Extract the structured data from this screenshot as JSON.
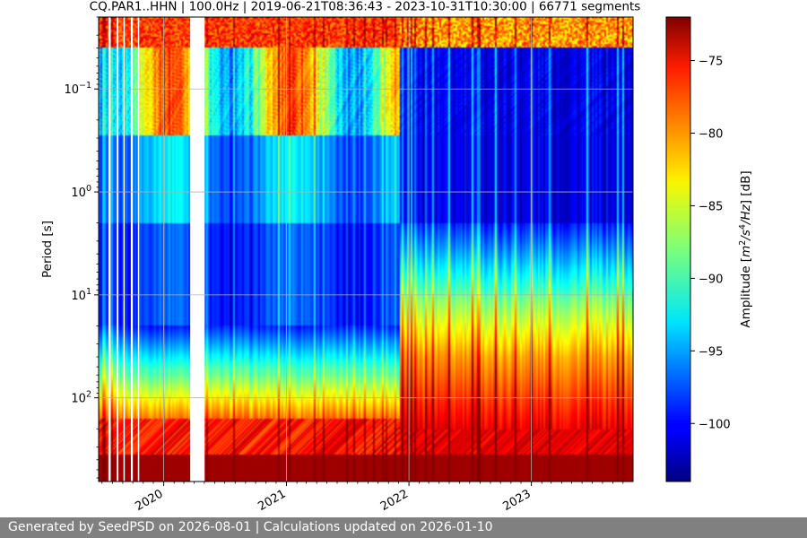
{
  "chart_data": {
    "type": "heatmap",
    "title": "CQ.PAR1..HHN | 100.0Hz | 2019-06-21T08:36:43 - 2023-10-31T10:30:00 | 66771 segments",
    "ylabel": "Period [s]",
    "xlabel": "",
    "x_tick_labels": [
      "2020",
      "2021",
      "2022",
      "2023"
    ],
    "x_tick_years": [
      2020,
      2021,
      2022,
      2023
    ],
    "xlim": [
      "2019-06-21",
      "2023-10-31"
    ],
    "y_scale": "log",
    "y_inverted": true,
    "ylim": [
      0.02,
      650
    ],
    "y_ticks": [
      {
        "value": 0.1,
        "base": "10",
        "exp": "−1"
      },
      {
        "value": 1,
        "base": "10",
        "exp": "0"
      },
      {
        "value": 10,
        "base": "10",
        "exp": "1"
      },
      {
        "value": 100,
        "base": "10",
        "exp": "2"
      }
    ],
    "grid": true,
    "colorbar": {
      "label_prefix": "Amplitude [",
      "label_unit_m": "m",
      "label_exp_2": "2",
      "label_slash_s": "/s",
      "label_exp_4": "4",
      "label_hz": "/Hz",
      "label_suffix": "] [dB]",
      "min": -104,
      "max": -72,
      "ticks": [
        -75,
        -80,
        -85,
        -90,
        -95,
        -100
      ],
      "colormap": "jet"
    },
    "gaps": [
      [
        "2019-07-20",
        "2019-07-27"
      ],
      [
        "2019-08-14",
        "2019-08-19"
      ],
      [
        "2019-09-03",
        "2019-09-07"
      ],
      [
        "2019-09-25",
        "2019-10-01"
      ],
      [
        "2019-10-16",
        "2019-10-20"
      ],
      [
        "2020-03-20",
        "2020-05-02"
      ]
    ]
  },
  "footer": {
    "text": "Generated by SeedPSD on 2026-08-01 | Calculations updated on 2026-01-10"
  }
}
